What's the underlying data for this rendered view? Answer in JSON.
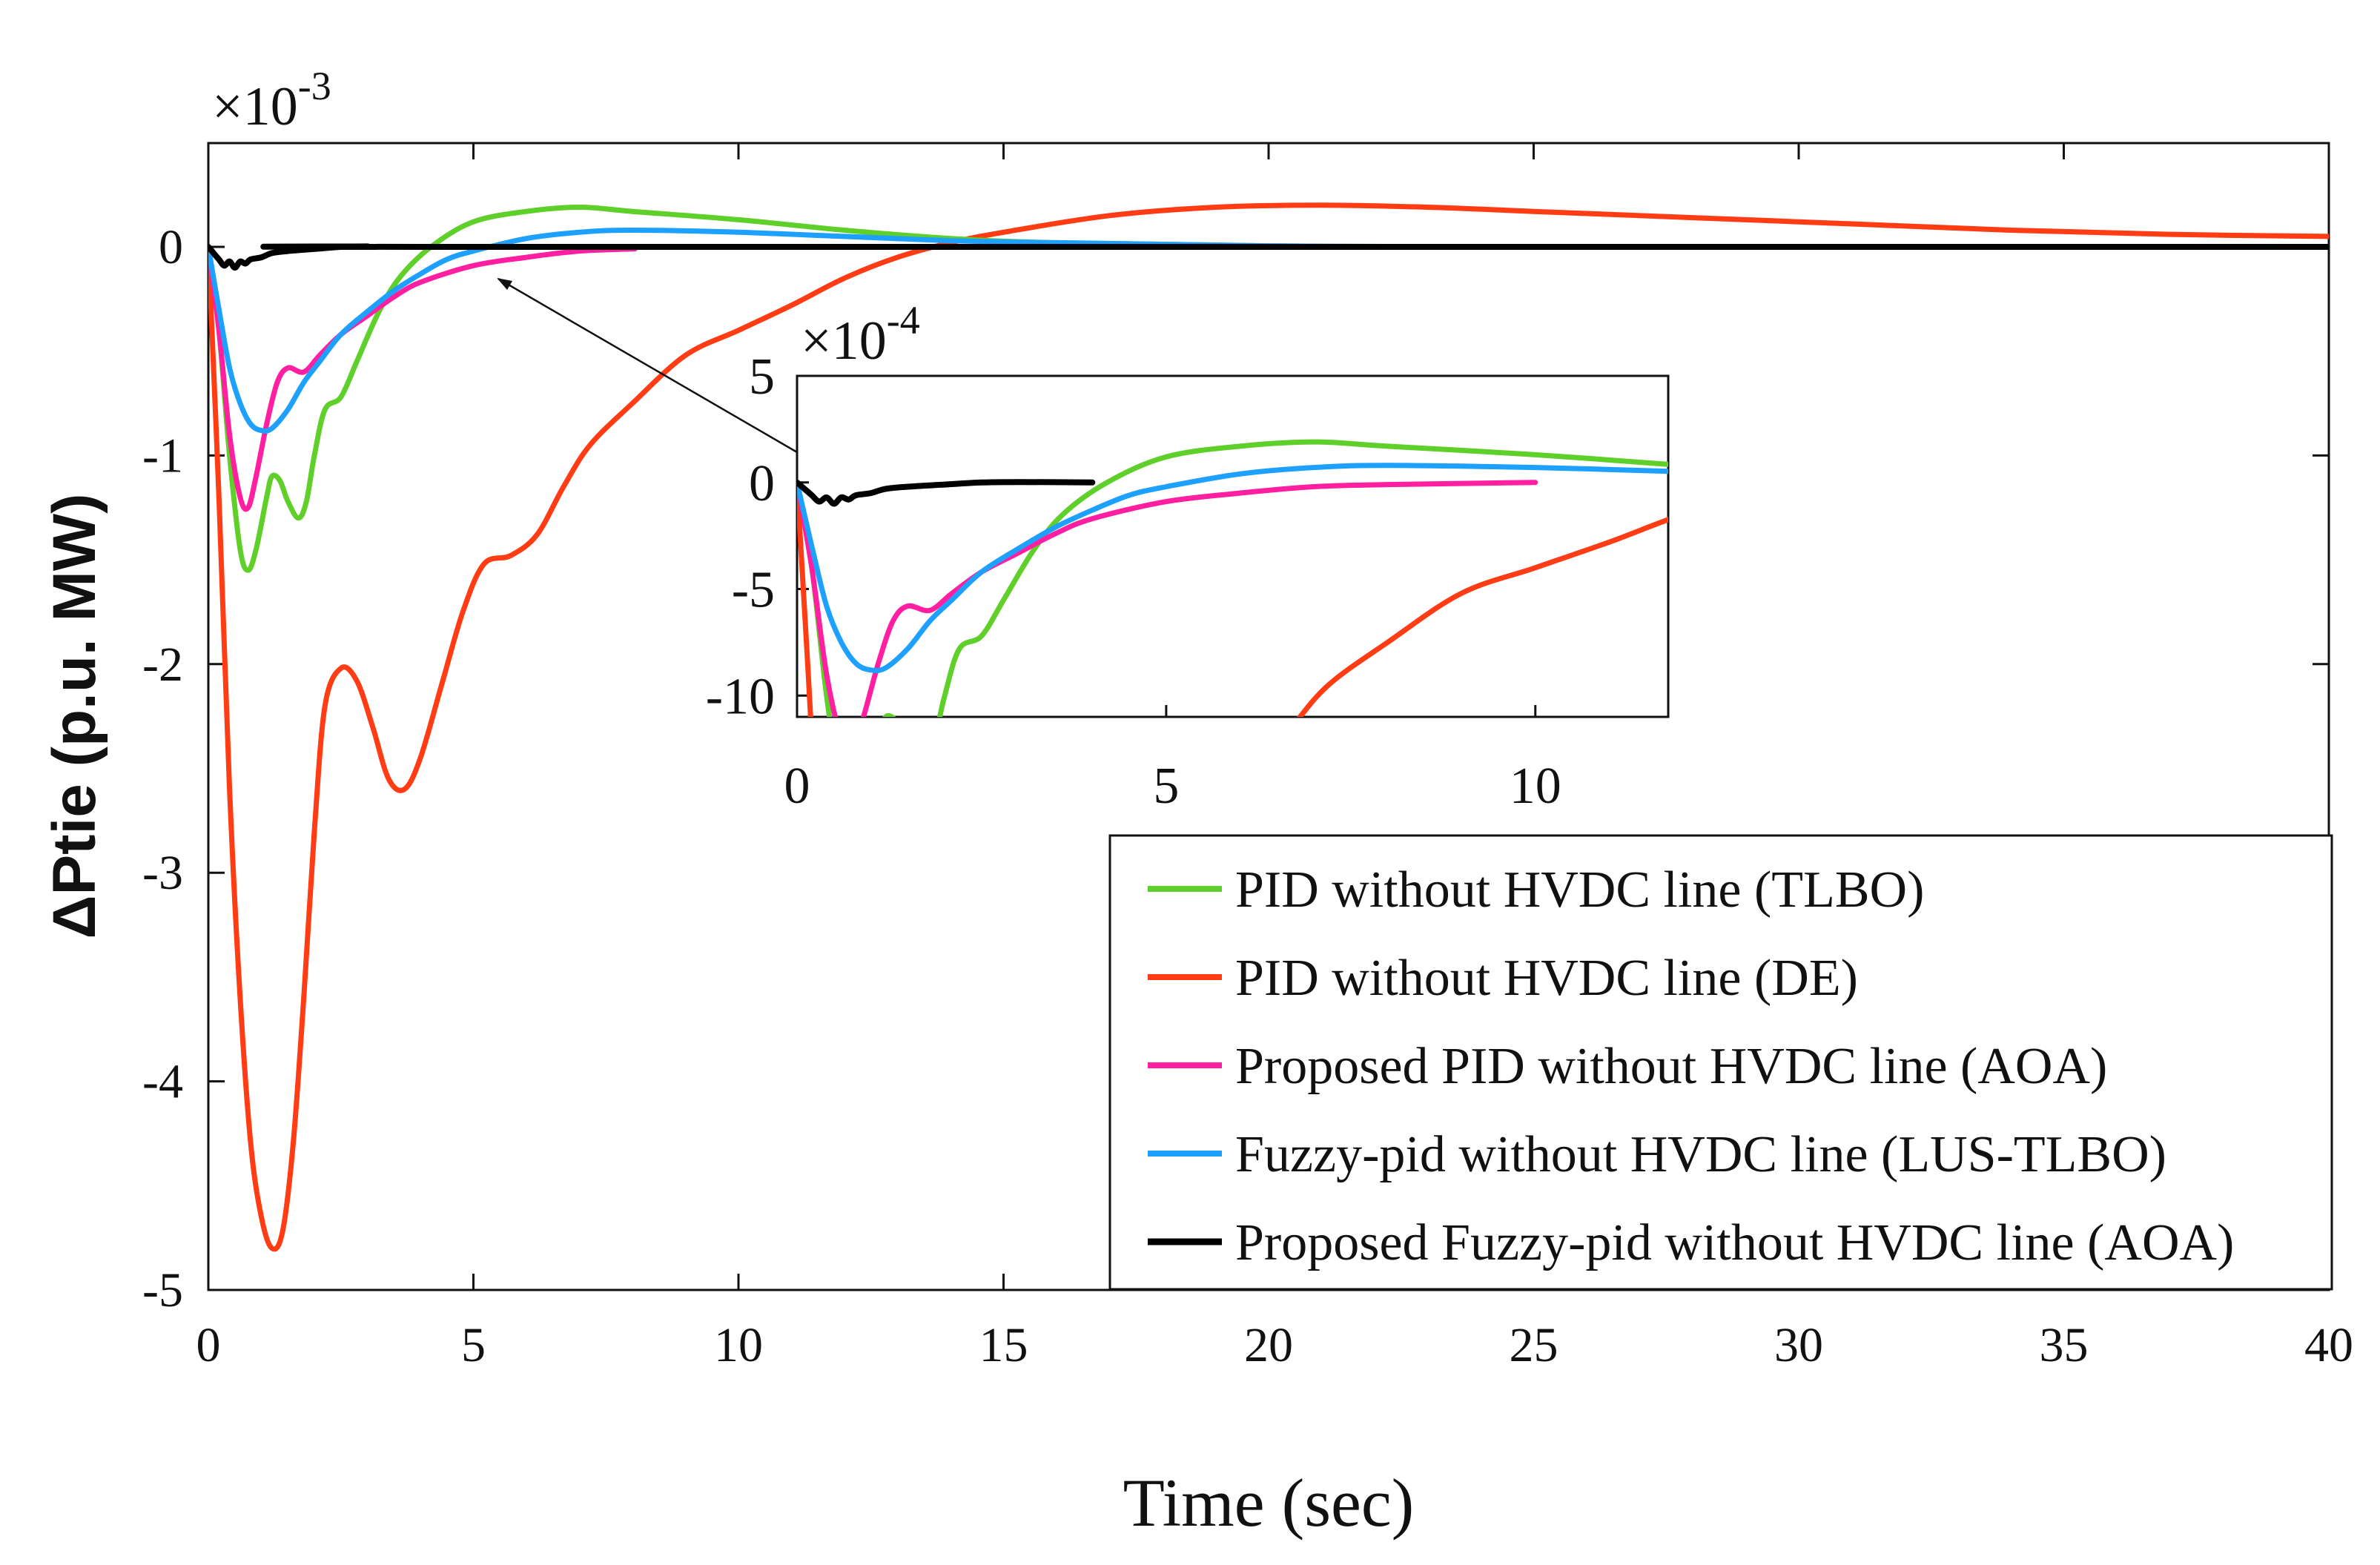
{
  "chart_data": {
    "type": "line",
    "title": "",
    "xlabel": "Time (sec)",
    "ylabel": "ΔPtie (p.u. MW)",
    "xlim": [
      0,
      40
    ],
    "ylim": [
      -5,
      0.5
    ],
    "x_ticks": [
      "0",
      "5",
      "10",
      "15",
      "20",
      "25",
      "30",
      "35",
      "40"
    ],
    "y_ticks": [
      "0",
      "-1",
      "-2",
      "-3",
      "-4",
      "-5"
    ],
    "y_multiplier": "×10",
    "y_multiplier_exp": "-3",
    "legend_position": "bottom-right",
    "grid": false,
    "series": [
      {
        "name": "PID without HVDC line (TLBO)",
        "color": "#5fcf2a",
        "points": [
          [
            0,
            0
          ],
          [
            0.2,
            -0.4
          ],
          [
            0.4,
            -1.0
          ],
          [
            0.6,
            -1.45
          ],
          [
            0.75,
            -1.55
          ],
          [
            0.9,
            -1.45
          ],
          [
            1.1,
            -1.2
          ],
          [
            1.2,
            -1.1
          ],
          [
            1.35,
            -1.12
          ],
          [
            1.5,
            -1.22
          ],
          [
            1.7,
            -1.3
          ],
          [
            1.85,
            -1.22
          ],
          [
            2.0,
            -1.0
          ],
          [
            2.2,
            -0.78
          ],
          [
            2.5,
            -0.72
          ],
          [
            2.8,
            -0.55
          ],
          [
            3.2,
            -0.32
          ],
          [
            3.6,
            -0.15
          ],
          [
            4.2,
            0.0
          ],
          [
            5,
            0.12
          ],
          [
            6,
            0.17
          ],
          [
            7,
            0.19
          ],
          [
            8,
            0.17
          ],
          [
            10,
            0.13
          ],
          [
            12,
            0.08
          ],
          [
            14,
            0.04
          ],
          [
            16,
            0.02
          ],
          [
            20,
            0.005
          ],
          [
            25,
            0.0
          ],
          [
            40,
            0.0
          ]
        ]
      },
      {
        "name": "PID without HVDC line (DE)",
        "color": "#ff3c14",
        "points": [
          [
            0,
            0
          ],
          [
            0.2,
            -1.2
          ],
          [
            0.4,
            -2.6
          ],
          [
            0.6,
            -3.6
          ],
          [
            0.8,
            -4.3
          ],
          [
            1.0,
            -4.65
          ],
          [
            1.2,
            -4.8
          ],
          [
            1.4,
            -4.72
          ],
          [
            1.6,
            -4.3
          ],
          [
            1.8,
            -3.6
          ],
          [
            2.0,
            -2.8
          ],
          [
            2.2,
            -2.2
          ],
          [
            2.5,
            -2.02
          ],
          [
            2.8,
            -2.08
          ],
          [
            3.1,
            -2.3
          ],
          [
            3.4,
            -2.55
          ],
          [
            3.7,
            -2.6
          ],
          [
            4.0,
            -2.45
          ],
          [
            4.4,
            -2.1
          ],
          [
            4.8,
            -1.75
          ],
          [
            5.2,
            -1.52
          ],
          [
            5.7,
            -1.48
          ],
          [
            6.2,
            -1.38
          ],
          [
            6.7,
            -1.15
          ],
          [
            7.2,
            -0.95
          ],
          [
            8.0,
            -0.75
          ],
          [
            9.0,
            -0.52
          ],
          [
            10.0,
            -0.4
          ],
          [
            11,
            -0.28
          ],
          [
            12,
            -0.15
          ],
          [
            13,
            -0.05
          ],
          [
            14,
            0.02
          ],
          [
            15,
            0.07
          ],
          [
            17,
            0.15
          ],
          [
            19,
            0.19
          ],
          [
            21,
            0.2
          ],
          [
            23,
            0.19
          ],
          [
            25,
            0.17
          ],
          [
            28,
            0.14
          ],
          [
            31,
            0.11
          ],
          [
            34,
            0.08
          ],
          [
            37,
            0.06
          ],
          [
            40,
            0.05
          ]
        ]
      },
      {
        "name": "Proposed PID without HVDC line (AOA)",
        "color": "#ff1fa0",
        "points": [
          [
            0,
            0
          ],
          [
            0.2,
            -0.4
          ],
          [
            0.4,
            -0.9
          ],
          [
            0.6,
            -1.2
          ],
          [
            0.75,
            -1.25
          ],
          [
            0.9,
            -1.1
          ],
          [
            1.1,
            -0.85
          ],
          [
            1.3,
            -0.65
          ],
          [
            1.5,
            -0.58
          ],
          [
            1.8,
            -0.6
          ],
          [
            2.1,
            -0.52
          ],
          [
            2.5,
            -0.42
          ],
          [
            3.0,
            -0.33
          ],
          [
            3.5,
            -0.24
          ],
          [
            4.0,
            -0.17
          ],
          [
            5,
            -0.09
          ],
          [
            6,
            -0.05
          ],
          [
            7,
            -0.02
          ],
          [
            8,
            -0.01
          ],
          [
            10,
            0.0
          ],
          [
            40,
            0.0
          ]
        ]
      },
      {
        "name": "Fuzzy-pid without HVDC line (LUS-TLBO)",
        "color": "#1ea0ff",
        "points": [
          [
            0,
            0
          ],
          [
            0.2,
            -0.3
          ],
          [
            0.4,
            -0.58
          ],
          [
            0.6,
            -0.75
          ],
          [
            0.8,
            -0.85
          ],
          [
            1.0,
            -0.88
          ],
          [
            1.2,
            -0.87
          ],
          [
            1.5,
            -0.78
          ],
          [
            1.8,
            -0.65
          ],
          [
            2.1,
            -0.55
          ],
          [
            2.5,
            -0.42
          ],
          [
            3.0,
            -0.31
          ],
          [
            3.5,
            -0.21
          ],
          [
            4.0,
            -0.13
          ],
          [
            4.5,
            -0.06
          ],
          [
            5.0,
            -0.02
          ],
          [
            6,
            0.04
          ],
          [
            7,
            0.07
          ],
          [
            8,
            0.08
          ],
          [
            10,
            0.07
          ],
          [
            12,
            0.05
          ],
          [
            14,
            0.03
          ],
          [
            16,
            0.02
          ],
          [
            20,
            0.005
          ],
          [
            25,
            0.0
          ],
          [
            40,
            0.0
          ]
        ]
      },
      {
        "name": "Proposed Fuzzy-pid without HVDC line (AOA)",
        "color": "#000000",
        "points": [
          [
            0,
            0
          ],
          [
            0.1,
            -0.03
          ],
          [
            0.2,
            -0.06
          ],
          [
            0.3,
            -0.09
          ],
          [
            0.4,
            -0.07
          ],
          [
            0.5,
            -0.1
          ],
          [
            0.6,
            -0.07
          ],
          [
            0.7,
            -0.08
          ],
          [
            0.8,
            -0.06
          ],
          [
            1.0,
            -0.05
          ],
          [
            1.2,
            -0.03
          ],
          [
            1.5,
            -0.02
          ],
          [
            2,
            -0.01
          ],
          [
            2.5,
            0.0
          ],
          [
            3,
            0.002
          ],
          [
            4,
            0.0
          ],
          [
            40,
            0.0
          ]
        ]
      }
    ],
    "inset": {
      "xlim": [
        0,
        11.8
      ],
      "ylim": [
        -11,
        5
      ],
      "x_ticks": [
        "0",
        "5",
        "10"
      ],
      "y_ticks": [
        "5",
        "0",
        "-5",
        "-10"
      ],
      "y_multiplier": "×10",
      "y_multiplier_exp": "-4",
      "arrow_target": [
        5.5,
        -0.15
      ]
    }
  }
}
